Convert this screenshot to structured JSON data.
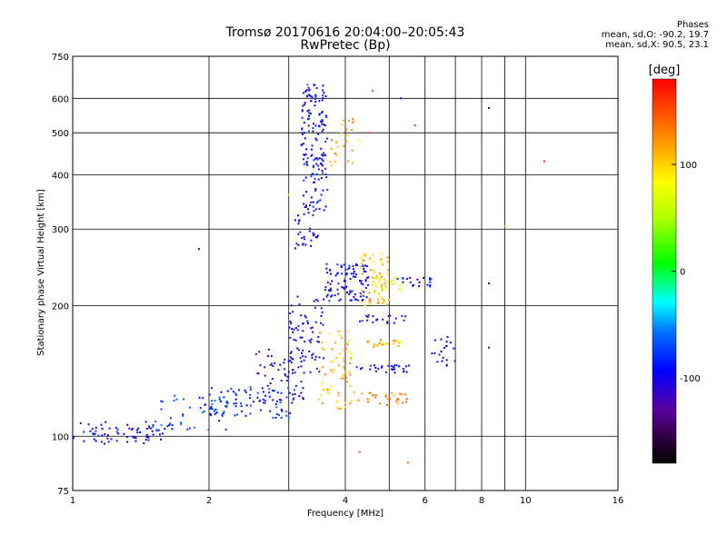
{
  "header": {
    "title": "Tromsø 20170616 20:04:00–20:05:43",
    "subtitle": "RwPretec (Bp)"
  },
  "stats": {
    "heading": "Phases",
    "line_o": "mean, sd,O: -90.2, 19.7",
    "line_x": "mean, sd,X:  90.5, 23.1"
  },
  "colorbar": {
    "label": "[deg]",
    "ticks": [
      {
        "value": 100,
        "label": "100"
      },
      {
        "value": 0,
        "label": "0"
      },
      {
        "value": -100,
        "label": "-100"
      }
    ],
    "range": [
      -180,
      180
    ]
  },
  "chart_data": {
    "type": "scatter",
    "xlabel": "Frequency [MHz]",
    "ylabel": "Stationary phase Virtual Height [km]",
    "x_scale": "log",
    "y_scale": "log",
    "xlim": [
      1,
      16
    ],
    "ylim": [
      75,
      750
    ],
    "grid": true,
    "x_ticks": [
      1,
      2,
      4,
      6,
      8,
      10,
      16
    ],
    "x_tick_labels": [
      "1",
      "2",
      "4",
      "6",
      "8",
      "10",
      "16"
    ],
    "x_minor_grid": [
      3,
      5,
      7,
      9,
      10
    ],
    "y_ticks": [
      75,
      100,
      200,
      300,
      400,
      500,
      600,
      750
    ],
    "y_tick_labels": [
      "75",
      "100",
      "200",
      "300",
      "400",
      "500",
      "600",
      "750"
    ],
    "color_by": "phase [deg]",
    "clusters": [
      {
        "f_range": [
          1.0,
          1.6
        ],
        "h_range": [
          96,
          108
        ],
        "phase": -100,
        "count": 70
      },
      {
        "f_range": [
          1.5,
          2.2
        ],
        "h_range": [
          103,
          125
        ],
        "phase": -75,
        "count": 50
      },
      {
        "f_range": [
          2.0,
          3.1
        ],
        "h_range": [
          110,
          130
        ],
        "phase": -80,
        "count": 80
      },
      {
        "f_range": [
          2.5,
          3.3
        ],
        "h_range": [
          120,
          160
        ],
        "phase": -105,
        "count": 60
      },
      {
        "f_range": [
          3.0,
          3.6
        ],
        "h_range": [
          140,
          210
        ],
        "phase": -110,
        "count": 70
      },
      {
        "f_range": [
          3.2,
          3.65
        ],
        "h_range": [
          330,
          650
        ],
        "phase": -95,
        "count": 160
      },
      {
        "f_range": [
          3.1,
          3.5
        ],
        "h_range": [
          270,
          330
        ],
        "phase": -100,
        "count": 30
      },
      {
        "f_range": [
          3.6,
          4.5
        ],
        "h_range": [
          205,
          250
        ],
        "phase": -95,
        "count": 100
      },
      {
        "f_range": [
          3.5,
          4.2
        ],
        "h_range": [
          115,
          175
        ],
        "phase": 110,
        "count": 70
      },
      {
        "f_range": [
          3.7,
          4.3
        ],
        "h_range": [
          420,
          540
        ],
        "phase": 115,
        "count": 25
      },
      {
        "f_range": [
          4.3,
          5.0
        ],
        "h_range": [
          200,
          265
        ],
        "phase": 105,
        "count": 60
      },
      {
        "f_range": [
          4.6,
          5.3
        ],
        "h_range": [
          215,
          232
        ],
        "phase": 80,
        "count": 25
      },
      {
        "f_range": [
          4.2,
          5.5
        ],
        "h_range": [
          118,
          126
        ],
        "phase": 130,
        "count": 30
      },
      {
        "f_range": [
          4.4,
          5.3
        ],
        "h_range": [
          160,
          167
        ],
        "phase": 110,
        "count": 25
      },
      {
        "f_range": [
          4.2,
          5.6
        ],
        "h_range": [
          140,
          146
        ],
        "phase": -95,
        "count": 30
      },
      {
        "f_range": [
          4.3,
          5.5
        ],
        "h_range": [
          182,
          190
        ],
        "phase": -100,
        "count": 20
      },
      {
        "f_range": [
          5.1,
          6.2
        ],
        "h_range": [
          220,
          232
        ],
        "phase": -90,
        "count": 20
      },
      {
        "f_range": [
          6.2,
          7.0
        ],
        "h_range": [
          145,
          170
        ],
        "phase": -100,
        "count": 20
      }
    ],
    "points": [
      {
        "f": 8.3,
        "h": 570,
        "phase": -110
      },
      {
        "f": 8.3,
        "h": 225,
        "phase": -105
      },
      {
        "f": 8.3,
        "h": 160,
        "phase": -120
      },
      {
        "f": 11.0,
        "h": 430,
        "phase": 170
      },
      {
        "f": 9.0,
        "h": 305,
        "phase": 110
      },
      {
        "f": 1.9,
        "h": 270,
        "phase": -115
      },
      {
        "f": 4.3,
        "h": 92,
        "phase": 150
      },
      {
        "f": 5.5,
        "h": 87,
        "phase": 140
      },
      {
        "f": 3.3,
        "h": 645,
        "phase": -60
      },
      {
        "f": 4.6,
        "h": 625,
        "phase": 150
      },
      {
        "f": 5.3,
        "h": 600,
        "phase": -90
      },
      {
        "f": 5.7,
        "h": 520,
        "phase": 160
      },
      {
        "f": 4.5,
        "h": 500,
        "phase": 150
      },
      {
        "f": 3.0,
        "h": 360,
        "phase": 60
      }
    ]
  }
}
